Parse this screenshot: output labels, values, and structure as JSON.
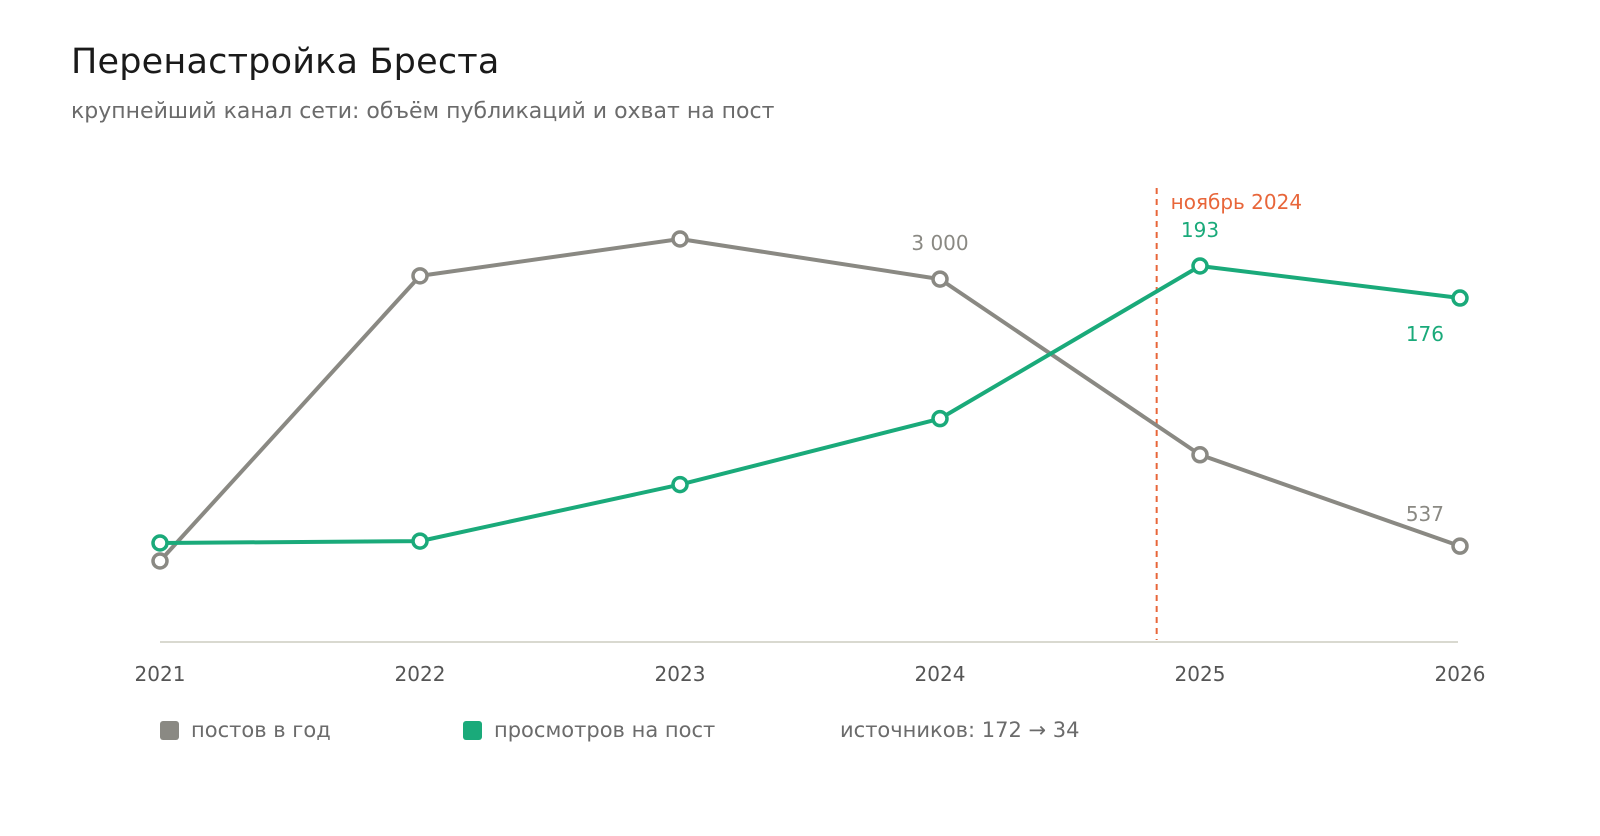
{
  "title": "Перенастройка Бреста",
  "subtitle": "крупнейший канал сети: объём публикаций и охват на пост",
  "colors": {
    "posts": "#8a8983",
    "views": "#1aaa7a",
    "marker": "#e8663a",
    "axis": "#d9d9d0",
    "tick_text": "#555555"
  },
  "chart_data": {
    "type": "line",
    "x": [
      "2021",
      "2022",
      "2023",
      "2024",
      "2025",
      "2026"
    ],
    "series": [
      {
        "name": "постов в год",
        "values": [
          400,
          3030,
          3370,
          3000,
          1380,
          537
        ],
        "labels": {
          "3": "3 000",
          "5": "537"
        }
      },
      {
        "name": "просмотров на пост",
        "values": [
          46,
          47,
          77,
          112,
          193,
          176
        ],
        "labels": {
          "4": "193",
          "5": "176"
        }
      }
    ],
    "annotations": [
      {
        "text": "ноябрь 2024",
        "x": "2024-11"
      }
    ],
    "legend": "bottom-left",
    "grid": false
  },
  "legend": {
    "posts_label": "постов в год",
    "views_label": "просмотров на пост"
  },
  "note": "источников: 172 → 34"
}
